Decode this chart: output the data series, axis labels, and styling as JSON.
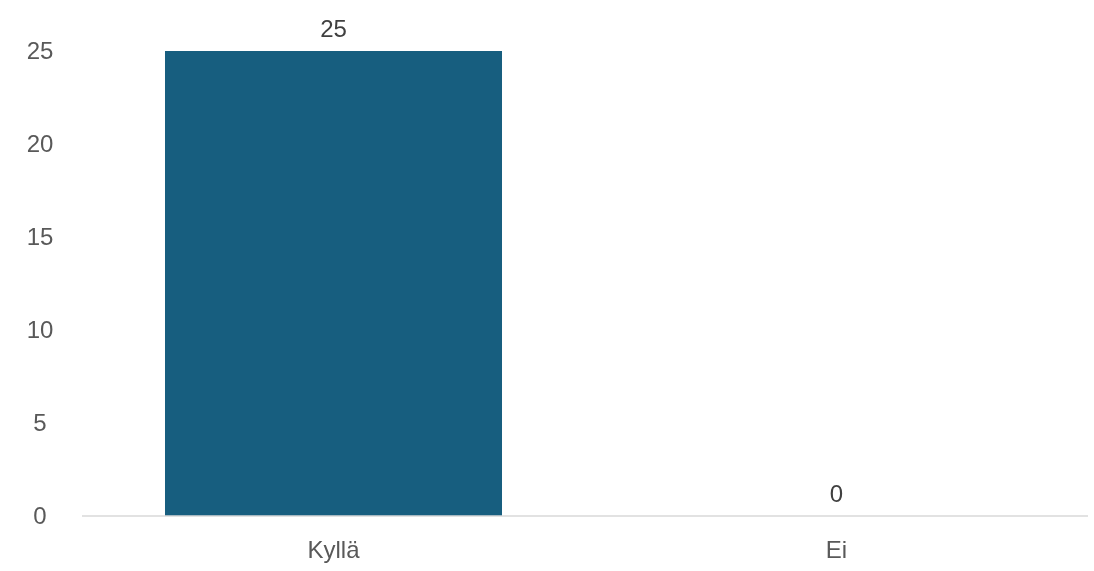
{
  "chart_data": {
    "type": "bar",
    "categories": [
      "Kyllä",
      "Ei"
    ],
    "values": [
      25,
      0
    ],
    "color": "#175e7f",
    "ylim": [
      0,
      25
    ],
    "yticks": [
      0,
      5,
      10,
      15,
      20,
      25
    ],
    "data_labels": true,
    "grid": false
  }
}
